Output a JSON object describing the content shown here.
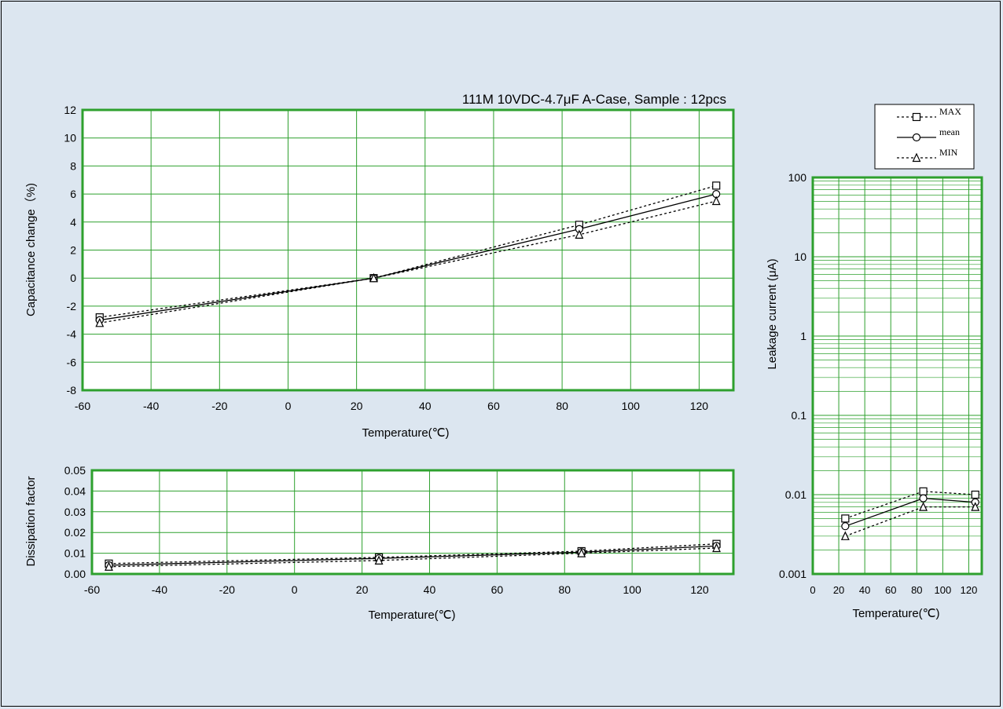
{
  "chart_data": [
    {
      "type": "line",
      "title": "111M 10VDC-4.7μF A-Case, Sample : 12pcs",
      "xlabel": "Temperature(℃)",
      "ylabel": "Capacitance change（%)",
      "xlim": [
        -60,
        130
      ],
      "ylim": [
        -8,
        12
      ],
      "xticks": [
        -60,
        -40,
        -20,
        0,
        20,
        40,
        60,
        80,
        100,
        120
      ],
      "yticks": [
        -8,
        -6,
        -4,
        -2,
        0,
        2,
        4,
        6,
        8,
        10,
        12
      ],
      "grid": true,
      "x": [
        -55,
        25,
        85,
        125
      ],
      "series": [
        {
          "name": "MAX",
          "values": [
            -2.8,
            0.0,
            3.8,
            6.6
          ]
        },
        {
          "name": "mean",
          "values": [
            -3.0,
            0.0,
            3.5,
            6.0
          ]
        },
        {
          "name": "MIN",
          "values": [
            -3.2,
            0.0,
            3.1,
            5.5
          ]
        }
      ]
    },
    {
      "type": "line",
      "title": "",
      "xlabel": "Temperature(℃)",
      "ylabel": "Dissipation factor",
      "xlim": [
        -60,
        130
      ],
      "ylim": [
        0,
        0.05
      ],
      "xticks": [
        -60,
        -40,
        -20,
        0,
        20,
        40,
        60,
        80,
        100,
        120
      ],
      "yticks": [
        "0.00",
        "0.01",
        "0.02",
        "0.03",
        "0.04",
        "0.05"
      ],
      "grid": true,
      "x": [
        -55,
        25,
        85,
        125
      ],
      "series": [
        {
          "name": "MAX",
          "values": [
            0.005,
            0.008,
            0.011,
            0.0145
          ]
        },
        {
          "name": "mean",
          "values": [
            0.0042,
            0.0075,
            0.0105,
            0.0135
          ]
        },
        {
          "name": "MIN",
          "values": [
            0.0035,
            0.0065,
            0.01,
            0.0125
          ]
        }
      ]
    },
    {
      "type": "line",
      "title": "",
      "xlabel": "Temperature(℃)",
      "ylabel": "Leakage current (μA)",
      "xlim": [
        0,
        130
      ],
      "ylim": [
        0.001,
        100
      ],
      "yscale": "log",
      "xticks": [
        0,
        20,
        40,
        60,
        80,
        100,
        120
      ],
      "yticks": [
        "0.001",
        "0.01",
        "0.1",
        "1",
        "10",
        "100"
      ],
      "grid": true,
      "x": [
        25,
        85,
        125
      ],
      "series": [
        {
          "name": "MAX",
          "values": [
            0.005,
            0.011,
            0.01
          ]
        },
        {
          "name": "mean",
          "values": [
            0.004,
            0.009,
            0.008
          ]
        },
        {
          "name": "MIN",
          "values": [
            0.003,
            0.007,
            0.007
          ]
        }
      ]
    }
  ],
  "legend": {
    "placement": "top-right",
    "entries": [
      {
        "label": "MAX",
        "marker": "square",
        "line": "dotted"
      },
      {
        "label": "mean",
        "marker": "circle",
        "line": "solid"
      },
      {
        "label": "MIN",
        "marker": "triangle",
        "line": "dotted"
      }
    ]
  },
  "colors": {
    "plot_border": "#2ea02e",
    "grid": "#2ea02e",
    "background": "#dce6f0",
    "plot_bg": "#ffffff",
    "line": "#000000"
  }
}
